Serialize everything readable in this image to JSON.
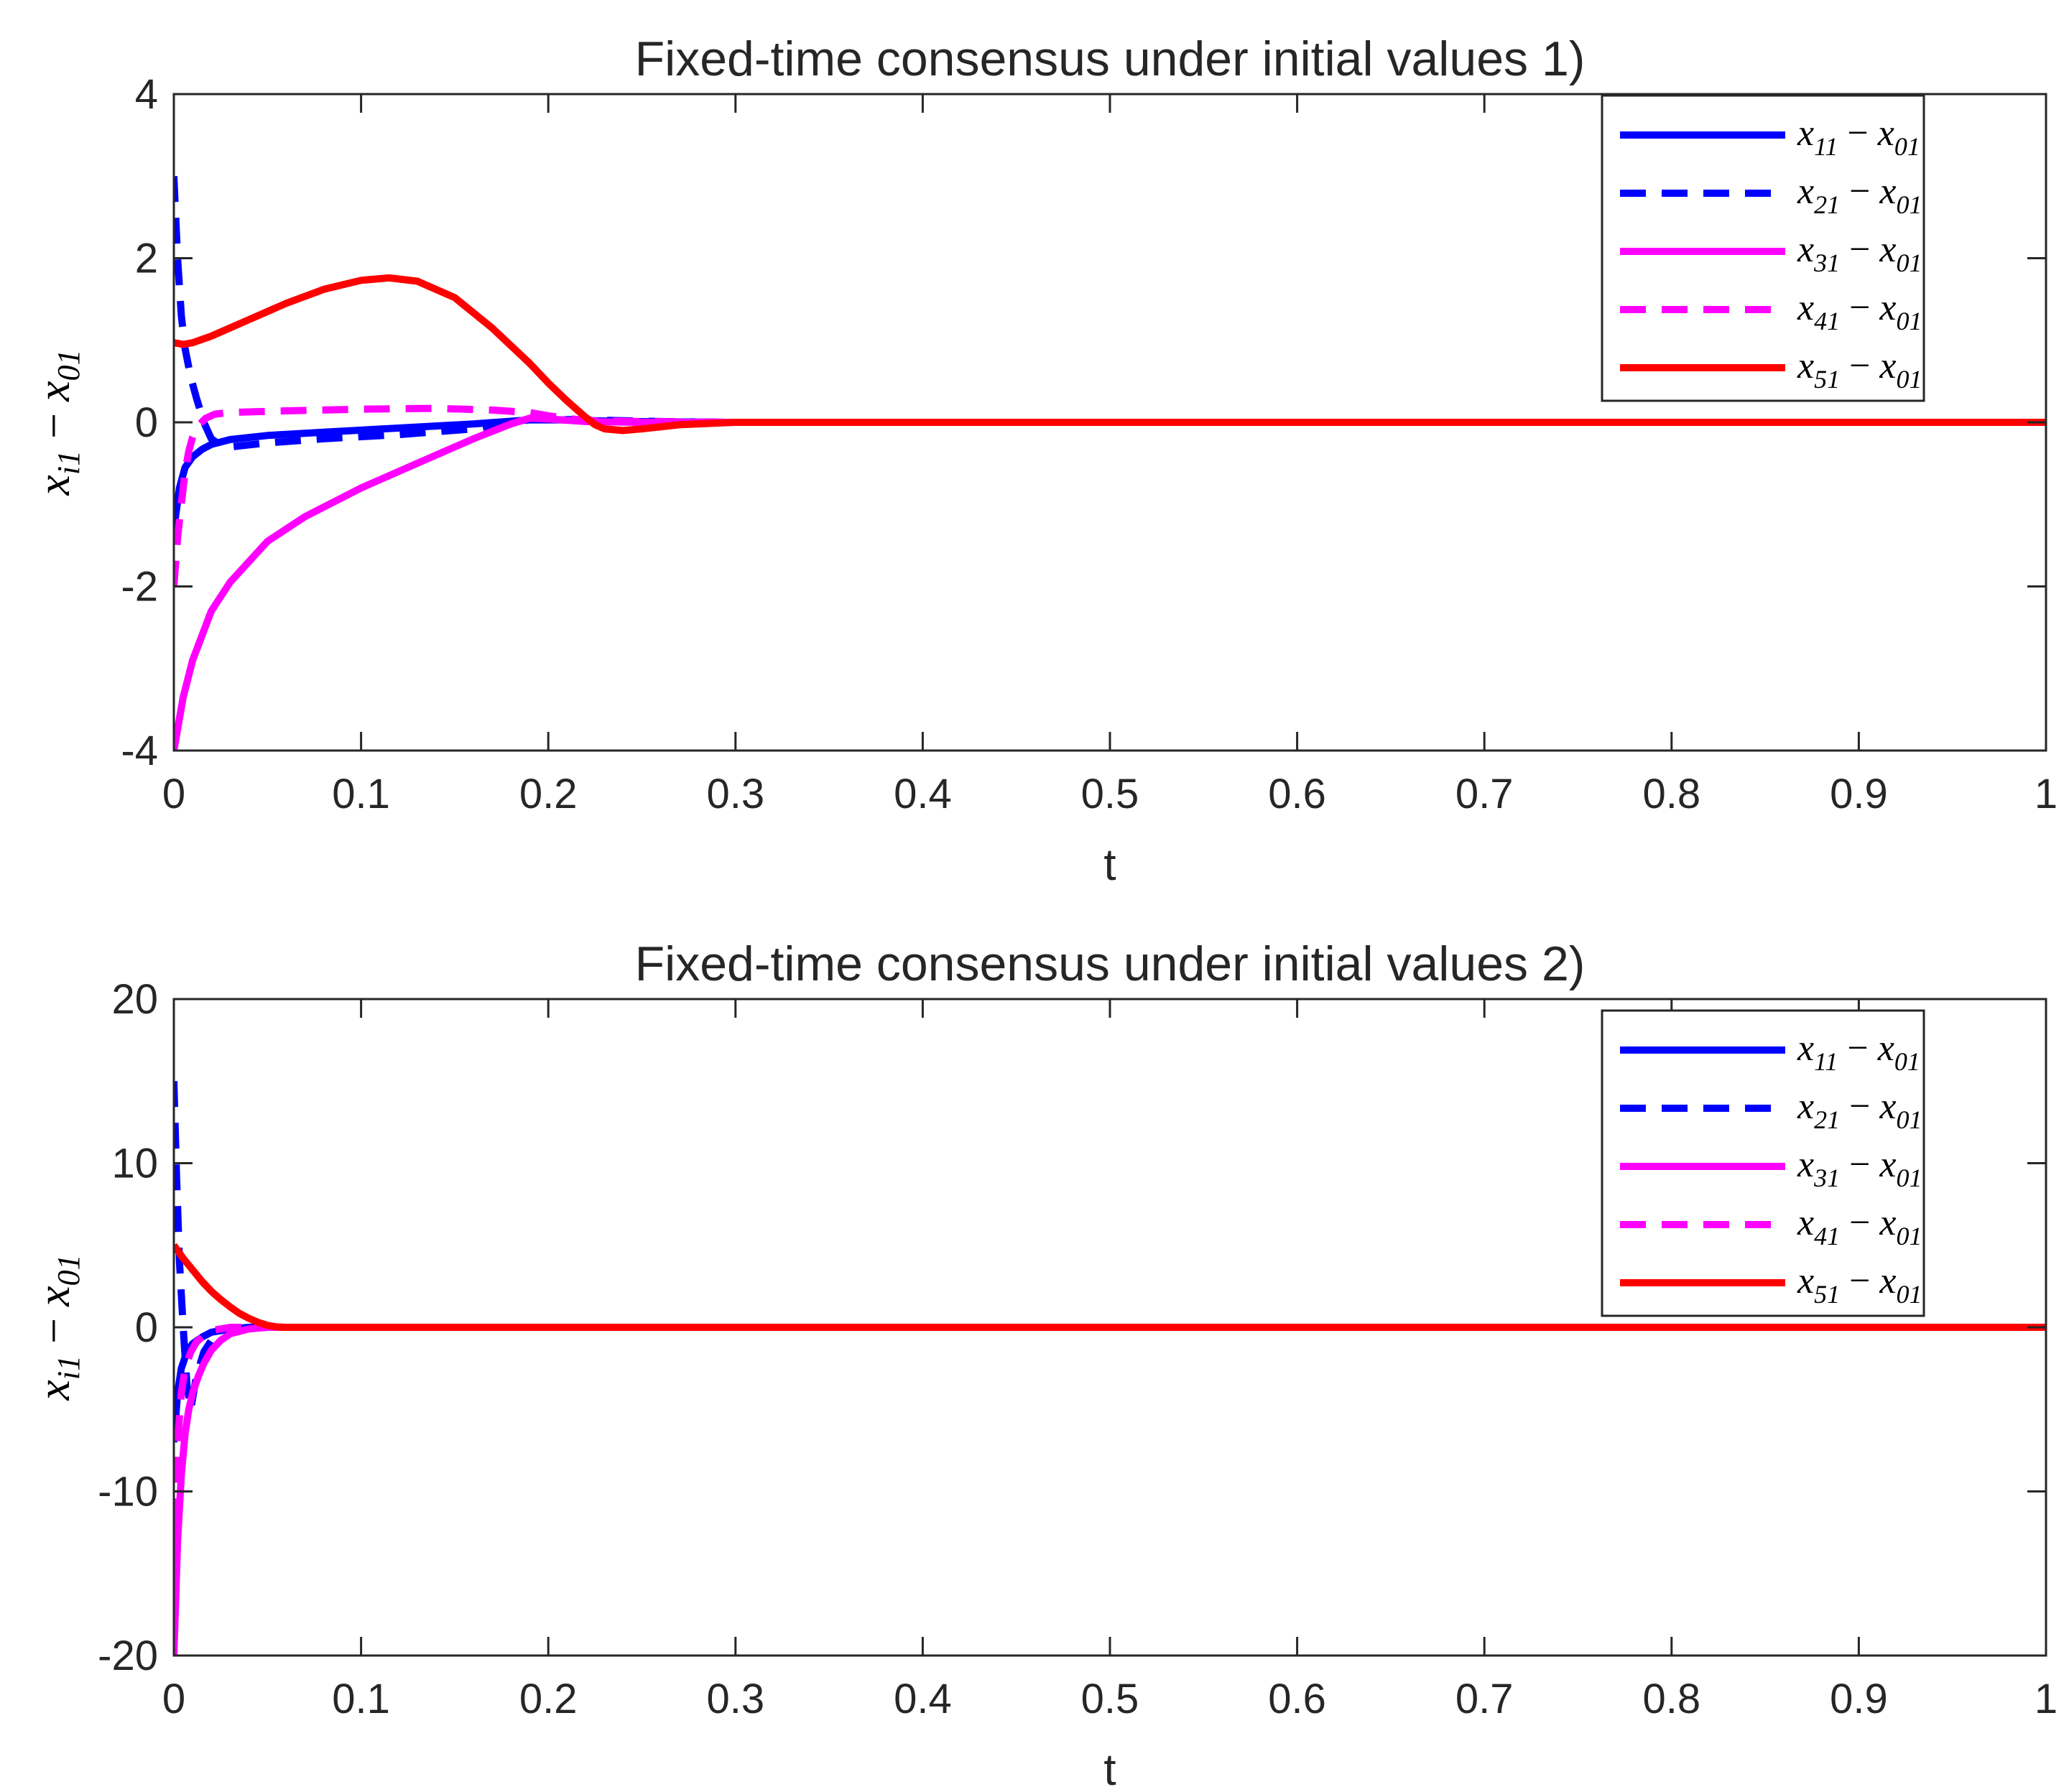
{
  "chart_data": [
    {
      "type": "line",
      "title": "Fixed-time consensus under initial values 1)",
      "xlabel": "t",
      "ylabel": "x_{i1} − x_{01}",
      "ylabel_main": "x",
      "ylabel_sub": "i1",
      "ylabel_op": " − ",
      "ylabel_main2": "x",
      "ylabel_sub2": "01",
      "xlim": [
        0,
        1
      ],
      "ylim": [
        -4,
        4
      ],
      "xticks": [
        0,
        0.1,
        0.2,
        0.3,
        0.4,
        0.5,
        0.6,
        0.7,
        0.8,
        0.9,
        1
      ],
      "xtick_labels": [
        "0",
        "0.1",
        "0.2",
        "0.3",
        "0.4",
        "0.5",
        "0.6",
        "0.7",
        "0.8",
        "0.9",
        "1"
      ],
      "yticks": [
        -4,
        -2,
        0,
        2,
        4
      ],
      "ytick_labels": [
        "-4",
        "-2",
        "0",
        "2",
        "4"
      ],
      "grid": false,
      "legend_position": "top-right",
      "series": [
        {
          "name": "x11 − x01",
          "label_main": "x",
          "label_sub": "11",
          "label_op": " − ",
          "label_main2": "x",
          "label_sub2": "01",
          "color": "#0000ff",
          "dash": "solid",
          "x": [
            0,
            0.003,
            0.006,
            0.01,
            0.015,
            0.02,
            0.03,
            0.05,
            0.08,
            0.12,
            0.16,
            0.19,
            0.21,
            0.24,
            0.3,
            0.5,
            0.8,
            1.0
          ],
          "y": [
            -1.3,
            -0.8,
            -0.55,
            -0.42,
            -0.33,
            -0.27,
            -0.21,
            -0.16,
            -0.12,
            -0.07,
            -0.02,
            0.03,
            0.03,
            0.01,
            0.0,
            0.0,
            0.0,
            0.0
          ]
        },
        {
          "name": "x21 − x01",
          "label_main": "x",
          "label_sub": "21",
          "label_op": " − ",
          "label_main2": "x",
          "label_sub2": "01",
          "color": "#0000ff",
          "dash": "dashed",
          "x": [
            0,
            0.002,
            0.004,
            0.006,
            0.009,
            0.012,
            0.016,
            0.02,
            0.025,
            0.03,
            0.05,
            0.08,
            0.12,
            0.16,
            0.19,
            0.22,
            0.26,
            0.3,
            0.5,
            0.8,
            1.0
          ],
          "y": [
            3.0,
            2.0,
            1.3,
            0.9,
            0.55,
            0.3,
            0.0,
            -0.2,
            -0.28,
            -0.3,
            -0.25,
            -0.2,
            -0.15,
            -0.08,
            0.04,
            0.03,
            0.01,
            0.0,
            0.0,
            0.0,
            0.0
          ]
        },
        {
          "name": "x31 − x01",
          "label_main": "x",
          "label_sub": "31",
          "label_op": " − ",
          "label_main2": "x",
          "label_sub2": "01",
          "color": "#ff00ff",
          "dash": "solid",
          "x": [
            0,
            0.005,
            0.01,
            0.02,
            0.03,
            0.05,
            0.07,
            0.1,
            0.13,
            0.16,
            0.18,
            0.19,
            0.2,
            0.22,
            0.25,
            0.3,
            0.5,
            0.8,
            1.0
          ],
          "y": [
            -4.0,
            -3.35,
            -2.9,
            -2.3,
            -1.95,
            -1.45,
            -1.15,
            -0.8,
            -0.5,
            -0.2,
            -0.02,
            0.05,
            0.04,
            0.01,
            0.0,
            0.0,
            0.0,
            0.0,
            0.0
          ]
        },
        {
          "name": "x41 − x01",
          "label_main": "x",
          "label_sub": "41",
          "label_op": " − ",
          "label_main2": "x",
          "label_sub2": "01",
          "color": "#ff00ff",
          "dash": "dashed",
          "x": [
            0,
            0.002,
            0.004,
            0.006,
            0.008,
            0.01,
            0.013,
            0.017,
            0.022,
            0.03,
            0.06,
            0.1,
            0.14,
            0.17,
            0.19,
            0.2,
            0.21,
            0.22,
            0.25,
            0.3,
            0.5,
            0.8,
            1.0
          ],
          "y": [
            -2.0,
            -1.4,
            -1.0,
            -0.6,
            -0.35,
            -0.18,
            -0.04,
            0.05,
            0.1,
            0.12,
            0.14,
            0.16,
            0.17,
            0.15,
            0.12,
            0.08,
            0.05,
            0.02,
            0.01,
            0.0,
            0.0,
            0.0,
            0.0
          ]
        },
        {
          "name": "x51 − x01",
          "label_main": "x",
          "label_sub": "51",
          "label_op": " − ",
          "label_main2": "x",
          "label_sub2": "01",
          "color": "#ff0000",
          "dash": "solid",
          "x": [
            0,
            0.005,
            0.01,
            0.02,
            0.04,
            0.06,
            0.08,
            0.1,
            0.115,
            0.13,
            0.15,
            0.17,
            0.19,
            0.2,
            0.21,
            0.22,
            0.225,
            0.23,
            0.24,
            0.25,
            0.27,
            0.3,
            0.5,
            0.8,
            1.0
          ],
          "y": [
            0.97,
            0.95,
            0.97,
            1.05,
            1.25,
            1.45,
            1.62,
            1.73,
            1.76,
            1.72,
            1.52,
            1.15,
            0.72,
            0.48,
            0.26,
            0.06,
            -0.03,
            -0.08,
            -0.1,
            -0.08,
            -0.03,
            0.0,
            0.0,
            0.0,
            0.0
          ]
        }
      ]
    },
    {
      "type": "line",
      "title": "Fixed-time consensus under initial values 2)",
      "xlabel": "t",
      "ylabel": "x_{i1} − x_{01}",
      "ylabel_main": "x",
      "ylabel_sub": "i1",
      "ylabel_op": " − ",
      "ylabel_main2": "x",
      "ylabel_sub2": "01",
      "xlim": [
        0,
        1
      ],
      "ylim": [
        -20,
        20
      ],
      "xticks": [
        0,
        0.1,
        0.2,
        0.3,
        0.4,
        0.5,
        0.6,
        0.7,
        0.8,
        0.9,
        1
      ],
      "xtick_labels": [
        "0",
        "0.1",
        "0.2",
        "0.3",
        "0.4",
        "0.5",
        "0.6",
        "0.7",
        "0.8",
        "0.9",
        "1"
      ],
      "yticks": [
        -20,
        -10,
        0,
        10,
        20
      ],
      "ytick_labels": [
        "-20",
        "-10",
        "0",
        "10",
        "20"
      ],
      "grid": false,
      "legend_position": "top-right",
      "series": [
        {
          "name": "x11 − x01",
          "label_main": "x",
          "label_sub": "11",
          "label_op": " − ",
          "label_main2": "x",
          "label_sub2": "01",
          "color": "#0000ff",
          "dash": "solid",
          "x": [
            0,
            0.002,
            0.004,
            0.007,
            0.01,
            0.015,
            0.02,
            0.03,
            0.04,
            1.0
          ],
          "y": [
            -7.0,
            -4.0,
            -2.5,
            -1.5,
            -1.0,
            -0.6,
            -0.3,
            -0.1,
            0.0,
            0.0
          ]
        },
        {
          "name": "x21 − x01",
          "label_main": "x",
          "label_sub": "21",
          "label_op": " − ",
          "label_main2": "x",
          "label_sub2": "01",
          "color": "#0000ff",
          "dash": "dashed",
          "x": [
            0,
            0.0015,
            0.003,
            0.005,
            0.007,
            0.009,
            0.012,
            0.016,
            0.02,
            0.025,
            0.035,
            0.05,
            1.0
          ],
          "y": [
            15.0,
            9.0,
            4.0,
            0.0,
            -3.5,
            -5.0,
            -3.0,
            -1.5,
            -0.8,
            -0.4,
            -0.1,
            0.0,
            0.0
          ]
        },
        {
          "name": "x31 − x01",
          "label_main": "x",
          "label_sub": "31",
          "label_op": " − ",
          "label_main2": "x",
          "label_sub2": "01",
          "color": "#ff00ff",
          "dash": "solid",
          "x": [
            0,
            0.002,
            0.004,
            0.006,
            0.008,
            0.01,
            0.013,
            0.016,
            0.02,
            0.025,
            0.03,
            0.04,
            0.05,
            1.0
          ],
          "y": [
            -20.0,
            -13.0,
            -9.0,
            -6.5,
            -5.0,
            -4.0,
            -3.0,
            -2.2,
            -1.4,
            -0.8,
            -0.4,
            -0.1,
            0.0,
            0.0
          ]
        },
        {
          "name": "x41 − x01",
          "label_main": "x",
          "label_sub": "41",
          "label_op": " − ",
          "label_main2": "x",
          "label_sub2": "01",
          "color": "#ff00ff",
          "dash": "dashed",
          "x": [
            0,
            0.002,
            0.004,
            0.006,
            0.009,
            0.012,
            0.016,
            0.02,
            0.03,
            1.0
          ],
          "y": [
            -12.0,
            -7.0,
            -4.0,
            -2.5,
            -1.5,
            -0.9,
            -0.5,
            -0.2,
            0.0,
            0.0
          ]
        },
        {
          "name": "x51 − x01",
          "label_main": "x",
          "label_sub": "51",
          "label_op": " − ",
          "label_main2": "x",
          "label_sub2": "01",
          "color": "#ff0000",
          "dash": "solid",
          "x": [
            0,
            0.005,
            0.01,
            0.015,
            0.02,
            0.025,
            0.03,
            0.035,
            0.04,
            0.045,
            0.05,
            0.055,
            0.06,
            1.0
          ],
          "y": [
            5.0,
            4.2,
            3.5,
            2.8,
            2.2,
            1.7,
            1.25,
            0.85,
            0.55,
            0.3,
            0.12,
            0.02,
            0.0,
            0.0
          ]
        }
      ]
    }
  ]
}
